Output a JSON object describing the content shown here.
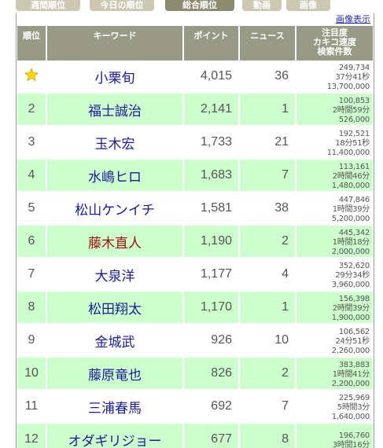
{
  "tabs": [
    {
      "label": "週間順位",
      "active": false
    },
    {
      "label": "今日の順位",
      "active": false
    },
    {
      "label": "総合順位",
      "active": true
    },
    {
      "label": "動画",
      "active": false
    },
    {
      "label": "画像",
      "active": false
    }
  ],
  "image_link": "画像表示",
  "headers": {
    "rank": "順位",
    "keyword": "キーワード",
    "points": "ポイント",
    "news": "ニュース",
    "attention_line1": "注目度",
    "attention_line2": "カキコ速度",
    "attention_line3": "検索件数"
  },
  "rows": [
    {
      "rank": "",
      "rank_icon": "star-icon",
      "keyword": "小栗旬",
      "visited": false,
      "points": "4,015",
      "news": "36",
      "a1": "249,734",
      "a2": "37分41秒",
      "a3": "13,700,000"
    },
    {
      "rank": "2",
      "keyword": "福士誠治",
      "visited": false,
      "points": "2,141",
      "news": "1",
      "a1": "100,853",
      "a2": "2時間59分",
      "a3": "526,000"
    },
    {
      "rank": "3",
      "keyword": "玉木宏",
      "visited": false,
      "points": "1,733",
      "news": "21",
      "a1": "192,521",
      "a2": "18分51秒",
      "a3": "11,400,000"
    },
    {
      "rank": "4",
      "keyword": "水嶋ヒロ",
      "visited": false,
      "points": "1,683",
      "news": "7",
      "a1": "113,161",
      "a2": "2時間46分",
      "a3": "1,480,000"
    },
    {
      "rank": "5",
      "keyword": "松山ケンイチ",
      "visited": false,
      "points": "1,581",
      "news": "38",
      "a1": "447,846",
      "a2": "1時間39分",
      "a3": "5,200,000"
    },
    {
      "rank": "6",
      "keyword": "藤木直人",
      "visited": true,
      "points": "1,190",
      "news": "2",
      "a1": "445,342",
      "a2": "1時間18分",
      "a3": "2,000,000"
    },
    {
      "rank": "7",
      "keyword": "大泉洋",
      "visited": false,
      "points": "1,177",
      "news": "4",
      "a1": "352,620",
      "a2": "29分34秒",
      "a3": "3,960,000"
    },
    {
      "rank": "8",
      "keyword": "松田翔太",
      "visited": false,
      "points": "1,170",
      "news": "1",
      "a1": "156,398",
      "a2": "2時間39分",
      "a3": "1,900,000"
    },
    {
      "rank": "9",
      "keyword": "金城武",
      "visited": false,
      "points": "926",
      "news": "10",
      "a1": "106,562",
      "a2": "24分51秒",
      "a3": "2,260,000"
    },
    {
      "rank": "10",
      "keyword": "藤原竜也",
      "visited": false,
      "points": "826",
      "news": "2",
      "a1": "383,883",
      "a2": "1時間41分",
      "a3": "2,200,000"
    },
    {
      "rank": "11",
      "keyword": "三浦春馬",
      "visited": false,
      "points": "692",
      "news": "7",
      "a1": "225,969",
      "a2": "5時間3分",
      "a3": "1,640,000"
    },
    {
      "rank": "12",
      "keyword": "オダギリジョー",
      "visited": false,
      "points": "677",
      "news": "8",
      "a1": "196,760",
      "a2": "3時間16分",
      "a3": ""
    }
  ],
  "colors": {
    "header_bg": "#999a86",
    "even_row": "#ccffcc",
    "tab_active": "#8c8a6e",
    "tab_inactive": "#ccc8b2",
    "link": "#1a1a9a",
    "visited": "#a01010",
    "star": "#ffd700"
  }
}
